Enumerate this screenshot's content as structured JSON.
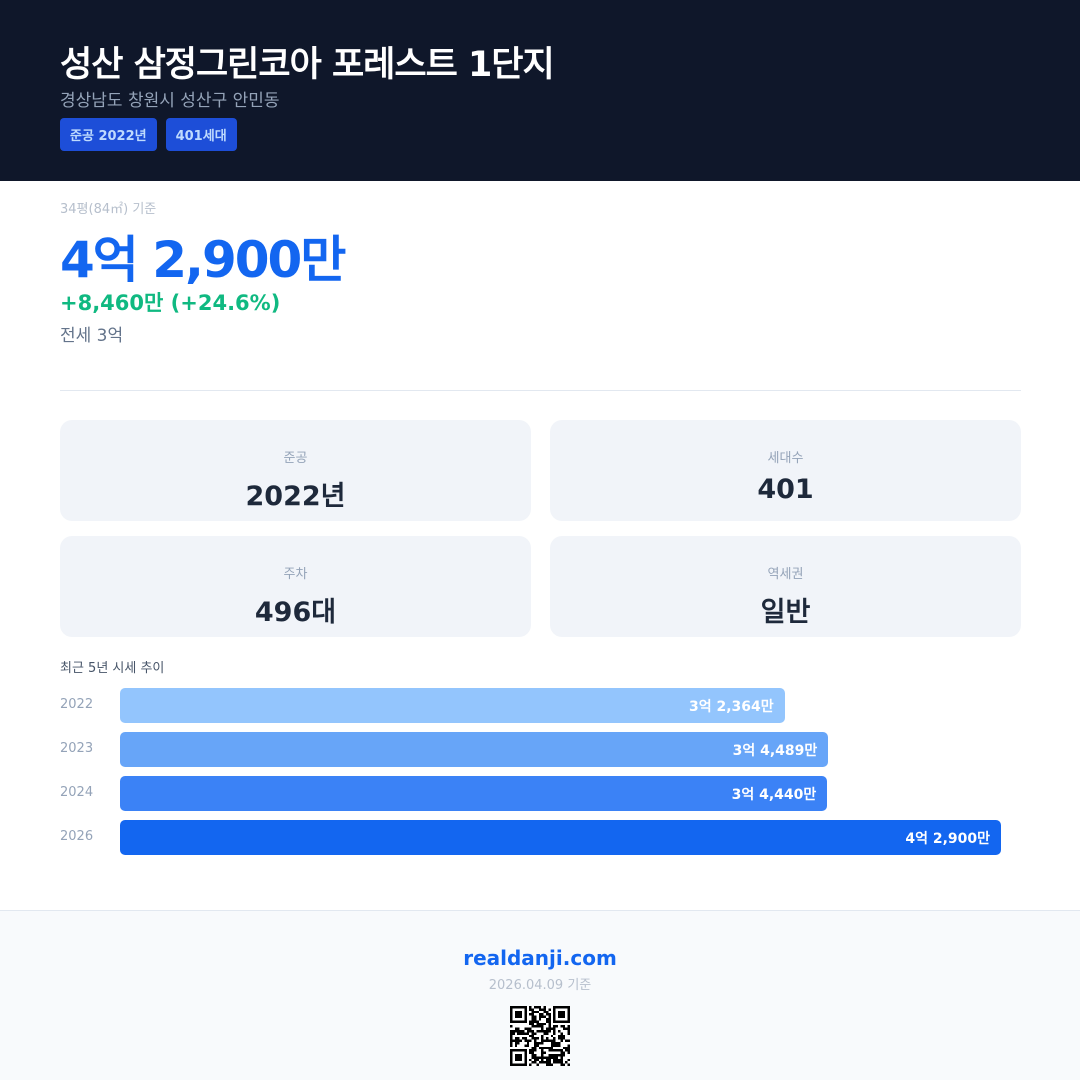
{
  "header": {
    "title": "성산 삼정그린코아 포레스트 1단지",
    "address": "경상남도 창원시 성산구 안민동",
    "badges": [
      "준공 2022년",
      "401세대"
    ]
  },
  "price": {
    "basis": "34평(84㎡) 기준",
    "value": "4억 2,900만",
    "change": "+8,460만 (+24.6%)",
    "jeonse": "전세 3억"
  },
  "cards": [
    {
      "label": "준공",
      "value": "2022년"
    },
    {
      "label": "세대수",
      "value": "401"
    },
    {
      "label": "주차",
      "value": "496대"
    },
    {
      "label": "역세권",
      "value": "일반"
    }
  ],
  "chart_data": {
    "type": "bar",
    "title": "최근 5년 시세 추이",
    "categories": [
      "2022",
      "2023",
      "2024",
      "2026"
    ],
    "values": [
      32364,
      34489,
      34440,
      42900
    ],
    "unit": "만원",
    "labels": [
      "3억 2,364만",
      "3억 4,489만",
      "3억 4,440만",
      "4억 2,900만"
    ],
    "colors": [
      "#93c5fd",
      "#67a5f8",
      "#3b82f6",
      "#1366f0"
    ]
  },
  "footer": {
    "site": "realdanji.com",
    "date": "2026.04.09 기준"
  }
}
